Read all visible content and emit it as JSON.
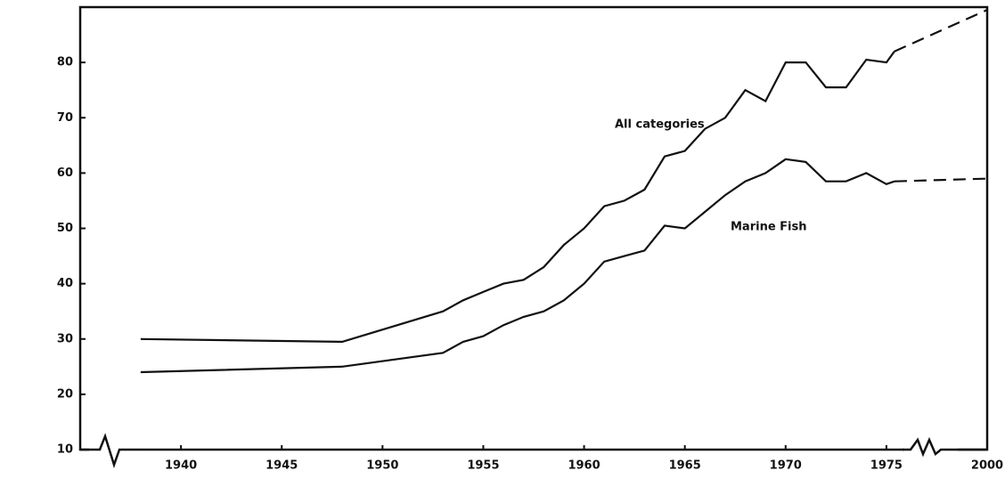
{
  "chart_data": {
    "type": "line",
    "x": [
      1938,
      1948,
      1953,
      1954,
      1955,
      1956,
      1957,
      1958,
      1959,
      1960,
      1961,
      1962,
      1963,
      1964,
      1965,
      1966,
      1967,
      1968,
      1969,
      1970,
      1971,
      1972,
      1973,
      1974,
      1975,
      1977,
      2000
    ],
    "series": [
      {
        "name": "All categories",
        "color": "#111111",
        "values": [
          30,
          29.5,
          35,
          37,
          38.5,
          40,
          40.7,
          43,
          47,
          50,
          54,
          55,
          57,
          63,
          64,
          68,
          70,
          75,
          73,
          80,
          80,
          75.5,
          75.5,
          80.5,
          80,
          82,
          89.5
        ]
      },
      {
        "name": "Marine Fish",
        "color": "#111111",
        "values": [
          24,
          25,
          27.5,
          29.5,
          30.5,
          32.5,
          34,
          35,
          37,
          40,
          44,
          45,
          46,
          50.5,
          50,
          53,
          56,
          58.5,
          60,
          62.5,
          62,
          58.5,
          58.5,
          60,
          58,
          58.5,
          59
        ]
      }
    ],
    "projection_start": 1977,
    "xlim": [
      1935,
      2000
    ],
    "xticks": [
      1940,
      1945,
      1950,
      1955,
      1960,
      1965,
      1970,
      1975,
      2000
    ],
    "ylim": [
      10,
      90
    ],
    "yticks": [
      10,
      20,
      30,
      40,
      50,
      60,
      70,
      80
    ]
  }
}
